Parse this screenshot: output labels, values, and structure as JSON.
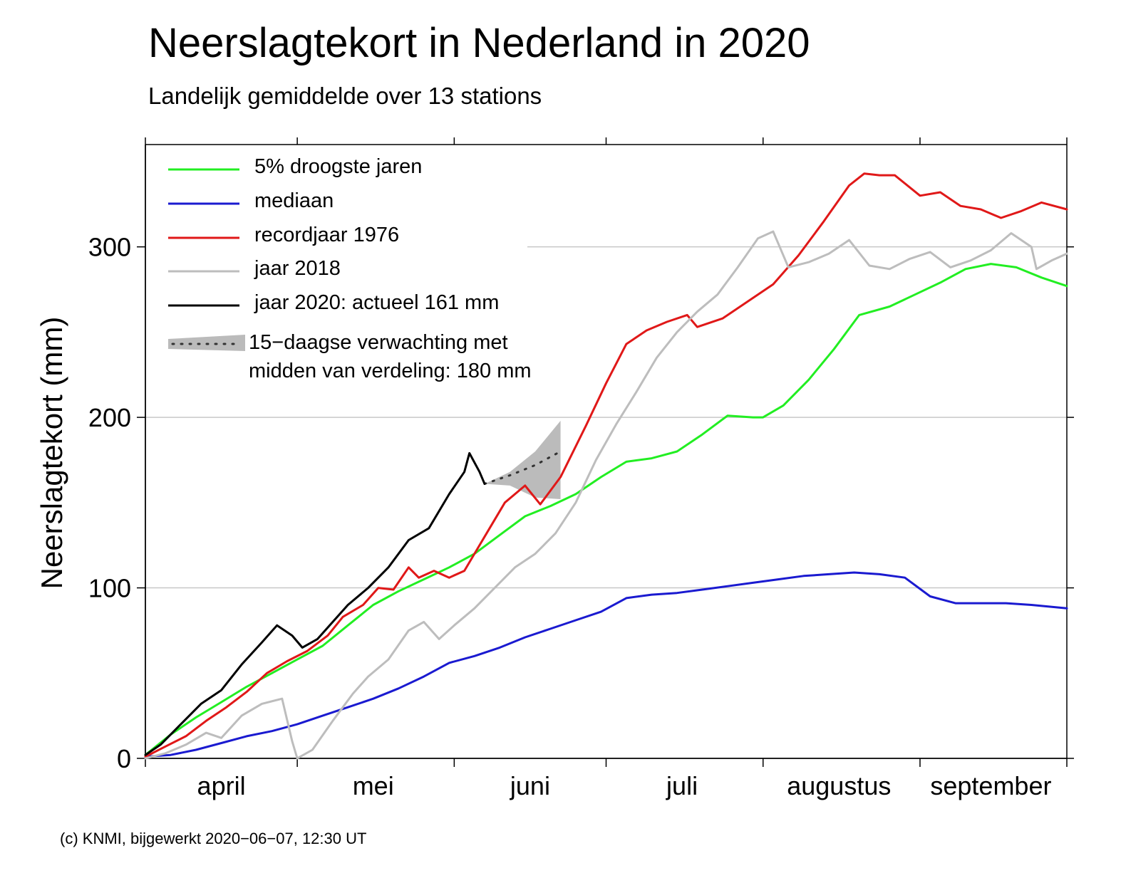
{
  "title": "Neerslagtekort in Nederland in 2020",
  "subtitle": "Landelijk gemiddelde over 13 stations",
  "footer": "(c) KNMI, bijgewerkt 2020−06−07, 12:30 UT",
  "chart_data": {
    "type": "line",
    "ylabel": "Neerslagtekort (mm)",
    "xlim": [
      "2020-04-01",
      "2020-09-30"
    ],
    "ylim": [
      0,
      360
    ],
    "yticks": [
      0,
      100,
      200,
      300
    ],
    "ytick_labels": [
      "0",
      "100",
      "200",
      "300"
    ],
    "xtick_dates": [
      "2020-04-01",
      "2020-05-01",
      "2020-06-01",
      "2020-07-01",
      "2020-08-01",
      "2020-09-01",
      "2020-09-30"
    ],
    "month_labels": [
      {
        "label": "april",
        "date": "2020-04-16"
      },
      {
        "label": "mei",
        "date": "2020-05-16"
      },
      {
        "label": "juni",
        "date": "2020-06-16"
      },
      {
        "label": "juli",
        "date": "2020-07-16"
      },
      {
        "label": "augustus",
        "date": "2020-08-16"
      },
      {
        "label": "september",
        "date": "2020-09-15"
      }
    ],
    "grid": {
      "horizontal": true,
      "vertical": false
    },
    "legend_position": "top-left",
    "series": [
      {
        "name": "5% droogste jaren",
        "color": "#22ee22",
        "points": [
          [
            "2020-04-01",
            2
          ],
          [
            "2020-04-06",
            14
          ],
          [
            "2020-04-11",
            24
          ],
          [
            "2020-04-16",
            33
          ],
          [
            "2020-04-21",
            42
          ],
          [
            "2020-04-26",
            50
          ],
          [
            "2020-05-01",
            58
          ],
          [
            "2020-05-06",
            66
          ],
          [
            "2020-05-11",
            78
          ],
          [
            "2020-05-16",
            90
          ],
          [
            "2020-05-21",
            98
          ],
          [
            "2020-05-26",
            105
          ],
          [
            "2020-05-31",
            112
          ],
          [
            "2020-06-05",
            120
          ],
          [
            "2020-06-10",
            131
          ],
          [
            "2020-06-15",
            142
          ],
          [
            "2020-06-20",
            148
          ],
          [
            "2020-06-25",
            155
          ],
          [
            "2020-06-30",
            165
          ],
          [
            "2020-07-05",
            174
          ],
          [
            "2020-07-10",
            176
          ],
          [
            "2020-07-15",
            180
          ],
          [
            "2020-07-20",
            190
          ],
          [
            "2020-07-25",
            201
          ],
          [
            "2020-07-30",
            200
          ],
          [
            "2020-08-01",
            200
          ],
          [
            "2020-08-05",
            207
          ],
          [
            "2020-08-10",
            222
          ],
          [
            "2020-08-15",
            240
          ],
          [
            "2020-08-20",
            260
          ],
          [
            "2020-08-26",
            265
          ],
          [
            "2020-08-31",
            272
          ],
          [
            "2020-09-05",
            279
          ],
          [
            "2020-09-10",
            287
          ],
          [
            "2020-09-15",
            290
          ],
          [
            "2020-09-20",
            288
          ],
          [
            "2020-09-25",
            282
          ],
          [
            "2020-09-30",
            277
          ]
        ]
      },
      {
        "name": "mediaan",
        "color": "#1a1ad0",
        "points": [
          [
            "2020-04-01",
            1
          ],
          [
            "2020-04-06",
            2
          ],
          [
            "2020-04-11",
            5
          ],
          [
            "2020-04-16",
            9
          ],
          [
            "2020-04-21",
            13
          ],
          [
            "2020-04-26",
            16
          ],
          [
            "2020-05-01",
            20
          ],
          [
            "2020-05-06",
            25
          ],
          [
            "2020-05-11",
            30
          ],
          [
            "2020-05-16",
            35
          ],
          [
            "2020-05-21",
            41
          ],
          [
            "2020-05-26",
            48
          ],
          [
            "2020-05-31",
            56
          ],
          [
            "2020-06-05",
            60
          ],
          [
            "2020-06-10",
            65
          ],
          [
            "2020-06-15",
            71
          ],
          [
            "2020-06-20",
            76
          ],
          [
            "2020-06-25",
            81
          ],
          [
            "2020-06-30",
            86
          ],
          [
            "2020-07-05",
            94
          ],
          [
            "2020-07-10",
            96
          ],
          [
            "2020-07-15",
            97
          ],
          [
            "2020-07-20",
            99
          ],
          [
            "2020-07-25",
            101
          ],
          [
            "2020-07-30",
            103
          ],
          [
            "2020-08-04",
            105
          ],
          [
            "2020-08-09",
            107
          ],
          [
            "2020-08-14",
            108
          ],
          [
            "2020-08-19",
            109
          ],
          [
            "2020-08-24",
            108
          ],
          [
            "2020-08-29",
            106
          ],
          [
            "2020-09-03",
            95
          ],
          [
            "2020-09-08",
            91
          ],
          [
            "2020-09-13",
            91
          ],
          [
            "2020-09-18",
            91
          ],
          [
            "2020-09-23",
            90
          ],
          [
            "2020-09-30",
            88
          ]
        ]
      },
      {
        "name": "recordjaar 1976",
        "color": "#e01818",
        "points": [
          [
            "2020-04-01",
            1
          ],
          [
            "2020-04-05",
            7
          ],
          [
            "2020-04-09",
            13
          ],
          [
            "2020-04-13",
            22
          ],
          [
            "2020-04-17",
            30
          ],
          [
            "2020-04-21",
            39
          ],
          [
            "2020-04-25",
            50
          ],
          [
            "2020-04-29",
            57
          ],
          [
            "2020-05-03",
            63
          ],
          [
            "2020-05-07",
            72
          ],
          [
            "2020-05-10",
            83
          ],
          [
            "2020-05-14",
            90
          ],
          [
            "2020-05-17",
            100
          ],
          [
            "2020-05-20",
            99
          ],
          [
            "2020-05-23",
            112
          ],
          [
            "2020-05-25",
            106
          ],
          [
            "2020-05-28",
            110
          ],
          [
            "2020-05-31",
            106
          ],
          [
            "2020-06-03",
            110
          ],
          [
            "2020-06-07",
            130
          ],
          [
            "2020-06-11",
            150
          ],
          [
            "2020-06-15",
            160
          ],
          [
            "2020-06-18",
            149
          ],
          [
            "2020-06-22",
            165
          ],
          [
            "2020-06-27",
            195
          ],
          [
            "2020-07-01",
            220
          ],
          [
            "2020-07-05",
            243
          ],
          [
            "2020-07-09",
            251
          ],
          [
            "2020-07-13",
            256
          ],
          [
            "2020-07-17",
            260
          ],
          [
            "2020-07-19",
            253
          ],
          [
            "2020-07-24",
            258
          ],
          [
            "2020-07-29",
            268
          ],
          [
            "2020-08-03",
            278
          ],
          [
            "2020-08-08",
            295
          ],
          [
            "2020-08-13",
            315
          ],
          [
            "2020-08-18",
            336
          ],
          [
            "2020-08-21",
            343
          ],
          [
            "2020-08-24",
            342
          ],
          [
            "2020-08-27",
            342
          ],
          [
            "2020-09-01",
            330
          ],
          [
            "2020-09-05",
            332
          ],
          [
            "2020-09-09",
            324
          ],
          [
            "2020-09-13",
            322
          ],
          [
            "2020-09-17",
            317
          ],
          [
            "2020-09-21",
            321
          ],
          [
            "2020-09-25",
            326
          ],
          [
            "2020-09-30",
            322
          ]
        ]
      },
      {
        "name": "jaar 2018",
        "color": "#bdbdbd",
        "points": [
          [
            "2020-04-01",
            0
          ],
          [
            "2020-04-05",
            3
          ],
          [
            "2020-04-09",
            8
          ],
          [
            "2020-04-13",
            15
          ],
          [
            "2020-04-16",
            12
          ],
          [
            "2020-04-20",
            25
          ],
          [
            "2020-04-24",
            32
          ],
          [
            "2020-04-28",
            35
          ],
          [
            "2020-04-30",
            10
          ],
          [
            "2020-05-01",
            0
          ],
          [
            "2020-05-04",
            5
          ],
          [
            "2020-05-08",
            22
          ],
          [
            "2020-05-12",
            38
          ],
          [
            "2020-05-15",
            48
          ],
          [
            "2020-05-19",
            58
          ],
          [
            "2020-05-23",
            75
          ],
          [
            "2020-05-26",
            80
          ],
          [
            "2020-05-29",
            70
          ],
          [
            "2020-06-01",
            78
          ],
          [
            "2020-06-05",
            88
          ],
          [
            "2020-06-09",
            100
          ],
          [
            "2020-06-13",
            112
          ],
          [
            "2020-06-17",
            120
          ],
          [
            "2020-06-21",
            132
          ],
          [
            "2020-06-25",
            150
          ],
          [
            "2020-06-29",
            175
          ],
          [
            "2020-07-03",
            196
          ],
          [
            "2020-07-07",
            215
          ],
          [
            "2020-07-11",
            235
          ],
          [
            "2020-07-15",
            250
          ],
          [
            "2020-07-19",
            262
          ],
          [
            "2020-07-23",
            272
          ],
          [
            "2020-07-27",
            288
          ],
          [
            "2020-07-31",
            305
          ],
          [
            "2020-08-03",
            309
          ],
          [
            "2020-08-06",
            288
          ],
          [
            "2020-08-10",
            291
          ],
          [
            "2020-08-14",
            296
          ],
          [
            "2020-08-18",
            304
          ],
          [
            "2020-08-22",
            289
          ],
          [
            "2020-08-26",
            287
          ],
          [
            "2020-08-30",
            293
          ],
          [
            "2020-09-03",
            297
          ],
          [
            "2020-09-07",
            288
          ],
          [
            "2020-09-11",
            292
          ],
          [
            "2020-09-15",
            298
          ],
          [
            "2020-09-19",
            308
          ],
          [
            "2020-09-23",
            300
          ],
          [
            "2020-09-24",
            287
          ],
          [
            "2020-09-27",
            292
          ],
          [
            "2020-09-30",
            296
          ]
        ]
      },
      {
        "name": "jaar 2020: actueel 161 mm",
        "color": "#000000",
        "points": [
          [
            "2020-04-01",
            2
          ],
          [
            "2020-04-04",
            8
          ],
          [
            "2020-04-08",
            20
          ],
          [
            "2020-04-12",
            32
          ],
          [
            "2020-04-16",
            40
          ],
          [
            "2020-04-20",
            55
          ],
          [
            "2020-04-24",
            68
          ],
          [
            "2020-04-27",
            78
          ],
          [
            "2020-04-30",
            72
          ],
          [
            "2020-05-02",
            65
          ],
          [
            "2020-05-05",
            70
          ],
          [
            "2020-05-08",
            80
          ],
          [
            "2020-05-11",
            90
          ],
          [
            "2020-05-15",
            100
          ],
          [
            "2020-05-19",
            112
          ],
          [
            "2020-05-23",
            128
          ],
          [
            "2020-05-27",
            135
          ],
          [
            "2020-05-31",
            155
          ],
          [
            "2020-06-03",
            168
          ],
          [
            "2020-06-04",
            179
          ],
          [
            "2020-06-06",
            168
          ],
          [
            "2020-06-07",
            161
          ]
        ]
      }
    ],
    "forecast": {
      "name": "15−daagse verwachting met",
      "name_line2": "midden van verdeling: 180 mm",
      "color": "#bbbbbb",
      "median": [
        [
          "2020-06-07",
          161
        ],
        [
          "2020-06-12",
          166
        ],
        [
          "2020-06-17",
          172
        ],
        [
          "2020-06-22",
          180
        ]
      ],
      "lower": [
        [
          "2020-06-07",
          161
        ],
        [
          "2020-06-12",
          160
        ],
        [
          "2020-06-17",
          153
        ],
        [
          "2020-06-22",
          152
        ]
      ],
      "upper": [
        [
          "2020-06-07",
          161
        ],
        [
          "2020-06-12",
          168
        ],
        [
          "2020-06-17",
          180
        ],
        [
          "2020-06-22",
          198
        ]
      ]
    }
  }
}
